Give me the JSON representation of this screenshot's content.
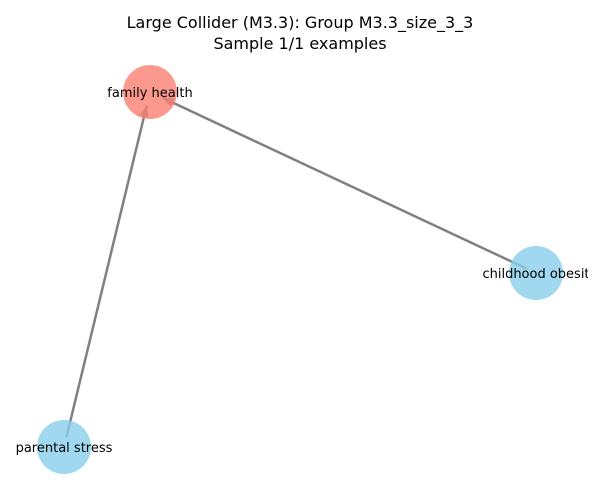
{
  "title": {
    "line1": "Large Collider (M3.3): Group M3.3_size_3_3",
    "line2": "Sample 1/1 examples"
  },
  "colors": {
    "collider_node": "#FA8072",
    "cause_node": "#87CEEB",
    "edge": "#808080"
  },
  "graph": {
    "nodes": [
      {
        "id": "family_health",
        "label": "family health",
        "role": "collider"
      },
      {
        "id": "childhood_obesity",
        "label": "childhood obesit",
        "role": "cause"
      },
      {
        "id": "parental_stress",
        "label": "parental stress",
        "role": "cause"
      }
    ],
    "edges": [
      {
        "from": "childhood_obesity",
        "to": "family_health"
      },
      {
        "from": "parental_stress",
        "to": "family_health"
      }
    ]
  }
}
